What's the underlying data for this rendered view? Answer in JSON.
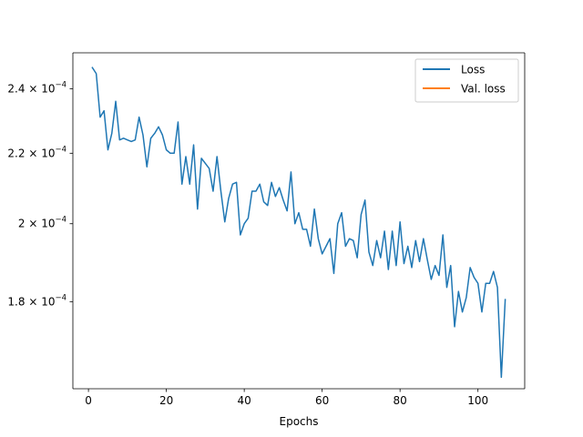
{
  "chart_data": {
    "type": "line",
    "title": "",
    "xlabel": "Epochs",
    "ylabel": "",
    "yscale": "log",
    "xlim": [
      -4,
      112
    ],
    "ylim": [
      0.00016,
      0.000252
    ],
    "xticks": [
      0,
      20,
      40,
      60,
      80,
      100
    ],
    "yticks": [
      {
        "value": 0.00018,
        "mantissa": "1.8",
        "exponent": "−4"
      },
      {
        "value": 0.0002,
        "mantissa": "2",
        "exponent": "−4"
      },
      {
        "value": 0.00022,
        "mantissa": "2.2",
        "exponent": "−4"
      },
      {
        "value": 0.00024,
        "mantissa": "2.4",
        "exponent": "−4"
      }
    ],
    "legend": {
      "position": "top-right",
      "entries": [
        {
          "label": "Loss",
          "color": "#1f77b4"
        },
        {
          "label": "Val. loss",
          "color": "#ff7f0e"
        }
      ]
    },
    "grid": false,
    "series": [
      {
        "name": "Loss",
        "color": "#1f77b4",
        "x": [
          1,
          2,
          3,
          4,
          5,
          6,
          7,
          8,
          9,
          10,
          11,
          12,
          13,
          14,
          15,
          16,
          17,
          18,
          19,
          20,
          21,
          22,
          23,
          24,
          25,
          26,
          27,
          28,
          29,
          30,
          31,
          32,
          33,
          34,
          35,
          36,
          37,
          38,
          39,
          40,
          41,
          42,
          43,
          44,
          45,
          46,
          47,
          48,
          49,
          50,
          51,
          52,
          53,
          54,
          55,
          56,
          57,
          58,
          59,
          60,
          61,
          62,
          63,
          64,
          65,
          66,
          67,
          68,
          69,
          70,
          71,
          72,
          73,
          74,
          75,
          76,
          77,
          78,
          79,
          80,
          81,
          82,
          83,
          84,
          85,
          86,
          87,
          88,
          89,
          90,
          91,
          92,
          93,
          94,
          95,
          96,
          97,
          98,
          99,
          100,
          101,
          102,
          103,
          104,
          105,
          106,
          107
        ],
        "y": [
          0.000247,
          0.000245,
          0.000231,
          0.000233,
          0.000221,
          0.000226,
          0.000236,
          0.000224,
          0.0002245,
          0.000224,
          0.0002235,
          0.000224,
          0.000231,
          0.0002255,
          0.000216,
          0.0002245,
          0.000226,
          0.000228,
          0.0002255,
          0.000221,
          0.00022,
          0.00022,
          0.0002295,
          0.000211,
          0.000219,
          0.000211,
          0.0002225,
          0.000204,
          0.0002185,
          0.000217,
          0.0002155,
          0.000209,
          0.000219,
          0.000209,
          0.0002005,
          0.000207,
          0.000211,
          0.0002115,
          0.000197,
          0.0002,
          0.0002015,
          0.000209,
          0.000209,
          0.000211,
          0.000206,
          0.000205,
          0.0002115,
          0.0002075,
          0.00021,
          0.0002065,
          0.0002035,
          0.0002145,
          0.0002,
          0.000203,
          0.0001985,
          0.0001985,
          0.000194,
          0.000204,
          0.000196,
          0.000192,
          0.000194,
          0.000196,
          0.000187,
          0.0002,
          0.000203,
          0.000194,
          0.000196,
          0.0001955,
          0.000191,
          0.0002025,
          0.0002065,
          0.0001925,
          0.000189,
          0.0001955,
          0.000191,
          0.000198,
          0.000188,
          0.000198,
          0.000189,
          0.0002005,
          0.0001895,
          0.000194,
          0.0001885,
          0.0001955,
          0.00019,
          0.000196,
          0.0001905,
          0.0001855,
          0.000189,
          0.0001865,
          0.000197,
          0.0001835,
          0.000189,
          0.000174,
          0.0001825,
          0.0001775,
          0.000181,
          0.0001885,
          0.000186,
          0.0001845,
          0.0001775,
          0.0001845,
          0.0001845,
          0.0001875,
          0.0001835,
          0.0001625,
          0.0001805
        ]
      }
    ]
  }
}
